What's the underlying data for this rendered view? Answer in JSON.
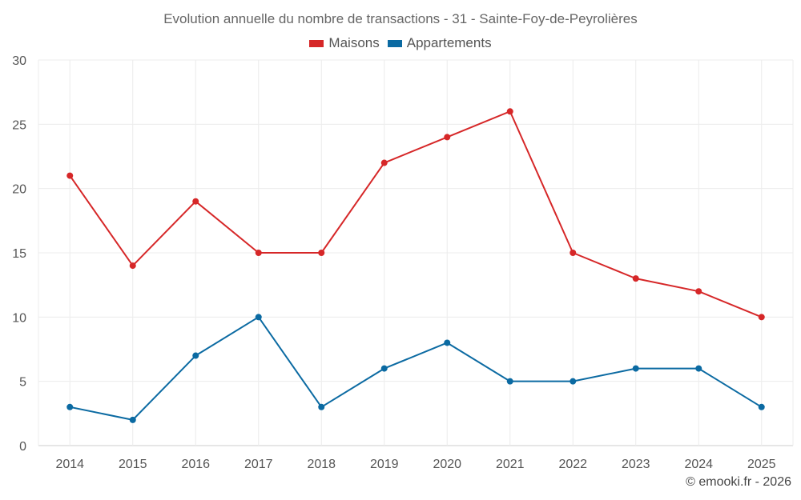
{
  "chart_data": {
    "type": "line",
    "title": "Evolution annuelle du nombre de transactions - 31 - Sainte-Foy-de-Peyrolières",
    "categories": [
      "2014",
      "2015",
      "2016",
      "2017",
      "2018",
      "2019",
      "2020",
      "2021",
      "2022",
      "2023",
      "2024",
      "2025"
    ],
    "series": [
      {
        "name": "Maisons",
        "color": "#d62728",
        "values": [
          21,
          14,
          19,
          15,
          15,
          22,
          24,
          26,
          15,
          13,
          12,
          10
        ]
      },
      {
        "name": "Appartements",
        "color": "#0b6aa2",
        "values": [
          3,
          2,
          7,
          10,
          3,
          6,
          8,
          5,
          5,
          6,
          6,
          3
        ]
      }
    ],
    "ylim": [
      0,
      30
    ],
    "yticks": [
      0,
      5,
      10,
      15,
      20,
      25,
      30
    ],
    "xlabel": "",
    "ylabel": "",
    "grid": true,
    "legend_position": "top-center"
  },
  "credit": "© emooki.fr - 2026"
}
